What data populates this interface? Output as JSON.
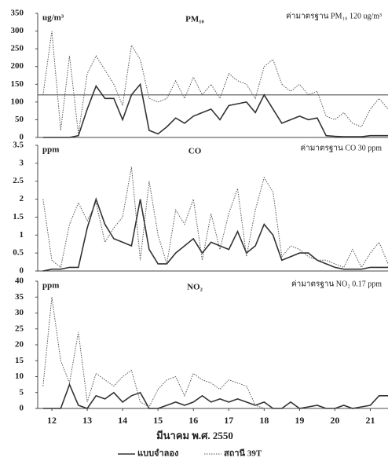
{
  "chart_data": [
    {
      "type": "line",
      "title": "PM₁₀",
      "annotation": "ค่ามาตรฐาน PM₁₀ 120 ug/m³",
      "ylabel": "ug/m³",
      "ylim": [
        0,
        350
      ],
      "yticks": [
        0,
        50,
        100,
        150,
        200,
        250,
        300,
        350
      ],
      "xlim": [
        11.6,
        21.5
      ],
      "ref_line": 120,
      "x": [
        11.75,
        12,
        12.25,
        12.5,
        12.75,
        13,
        13.25,
        13.5,
        13.75,
        14,
        14.25,
        14.5,
        14.75,
        15,
        15.25,
        15.5,
        15.75,
        16,
        16.25,
        16.5,
        16.75,
        17,
        17.25,
        17.5,
        17.75,
        18,
        18.25,
        18.5,
        18.75,
        19,
        19.25,
        19.5,
        19.75,
        20,
        20.25,
        20.5,
        20.75,
        21,
        21.25,
        21.5
      ],
      "series": [
        {
          "name": "แบบจำลอง",
          "color": "#333333",
          "line_style": "solid",
          "values": [
            0,
            0,
            0,
            0,
            5,
            80,
            145,
            110,
            110,
            50,
            120,
            150,
            20,
            10,
            30,
            55,
            40,
            60,
            70,
            80,
            50,
            90,
            95,
            100,
            70,
            120,
            80,
            40,
            50,
            60,
            50,
            55,
            5,
            3,
            2,
            2,
            2,
            5,
            5,
            5
          ]
        },
        {
          "name": "สถานี 39T",
          "color": "#555555",
          "line_style": "dotted",
          "values": [
            120,
            300,
            20,
            230,
            10,
            180,
            230,
            190,
            150,
            90,
            260,
            220,
            110,
            100,
            110,
            160,
            110,
            170,
            120,
            150,
            110,
            180,
            160,
            150,
            110,
            200,
            220,
            150,
            130,
            150,
            120,
            130,
            60,
            50,
            70,
            40,
            30,
            80,
            110,
            80
          ]
        }
      ]
    },
    {
      "type": "line",
      "title": "CO",
      "annotation": "ค่ามาตรฐาน CO  30 ppm",
      "ylabel": "ppm",
      "ylim": [
        0,
        3.5
      ],
      "yticks": [
        0,
        0.5,
        1,
        1.5,
        2,
        2.5,
        3,
        3.5
      ],
      "xlim": [
        11.6,
        21.5
      ],
      "x": [
        11.75,
        12,
        12.25,
        12.5,
        12.75,
        13,
        13.25,
        13.5,
        13.75,
        14,
        14.25,
        14.5,
        14.75,
        15,
        15.25,
        15.5,
        15.75,
        16,
        16.25,
        16.5,
        16.75,
        17,
        17.25,
        17.5,
        17.75,
        18,
        18.25,
        18.5,
        18.75,
        19,
        19.25,
        19.5,
        19.75,
        20,
        20.25,
        20.5,
        20.75,
        21,
        21.25,
        21.5
      ],
      "series": [
        {
          "color": "#333333",
          "line_style": "solid",
          "values": [
            0,
            0.05,
            0.05,
            0.1,
            0.1,
            1.2,
            2,
            1.3,
            0.9,
            0.8,
            0.7,
            2,
            0.6,
            0.2,
            0.2,
            0.5,
            0.7,
            0.9,
            0.5,
            0.8,
            0.7,
            0.6,
            1.1,
            0.5,
            0.7,
            1.3,
            1,
            0.3,
            0.4,
            0.5,
            0.5,
            0.3,
            0.2,
            0.1,
            0.05,
            0.05,
            0.05,
            0.1,
            0.1,
            0.1
          ]
        },
        {
          "color": "#555555",
          "line_style": "dotted",
          "values": [
            2,
            0.3,
            0.1,
            1.3,
            1.9,
            1.4,
            1.9,
            0.8,
            1.2,
            1.5,
            2.9,
            0.3,
            2.5,
            1,
            0.2,
            1.7,
            1.3,
            2,
            0.3,
            1.6,
            0.6,
            1.6,
            2.3,
            0.4,
            1.7,
            2.6,
            2.2,
            0.4,
            0.7,
            0.6,
            0.4,
            0.3,
            0.3,
            0.2,
            0.1,
            0.6,
            0.1,
            0.5,
            0.8,
            0.2
          ]
        }
      ]
    },
    {
      "type": "line",
      "title": "NO₂",
      "annotation": "ค่ามาตรฐาน NO₂ 0.17 ppm",
      "ylabel": "ppm",
      "xlabel": "มีนาคม พ.ศ. 2550",
      "ylim": [
        0,
        40
      ],
      "yticks": [
        0,
        5,
        10,
        15,
        20,
        25,
        30,
        35,
        40
      ],
      "xlim": [
        11.6,
        21.5
      ],
      "xticks": [
        12,
        13,
        14,
        15,
        16,
        17,
        18,
        19,
        20,
        21
      ],
      "x": [
        11.75,
        12,
        12.25,
        12.5,
        12.75,
        13,
        13.25,
        13.5,
        13.75,
        14,
        14.25,
        14.5,
        14.75,
        15,
        15.25,
        15.5,
        15.75,
        16,
        16.25,
        16.5,
        16.75,
        17,
        17.25,
        17.5,
        17.75,
        18,
        18.25,
        18.5,
        18.75,
        19,
        19.25,
        19.5,
        19.75,
        20,
        20.25,
        20.5,
        20.75,
        21,
        21.25,
        21.5
      ],
      "series": [
        {
          "color": "#333333",
          "line_style": "solid",
          "values": [
            0,
            0,
            0,
            7.5,
            1,
            0,
            4,
            3,
            5,
            2,
            4,
            5,
            0,
            0,
            1,
            2,
            1,
            2,
            4,
            2,
            3,
            2,
            3,
            2,
            1,
            2,
            0,
            0,
            2,
            0,
            0.5,
            1,
            0,
            0,
            1,
            0,
            0.5,
            1,
            4,
            4
          ]
        },
        {
          "color": "#555555",
          "line_style": "dotted",
          "values": [
            7,
            35,
            15,
            8,
            24,
            2,
            11,
            9,
            7,
            10,
            12,
            2,
            0.5,
            6,
            9,
            10,
            4,
            11,
            9,
            8,
            6,
            9,
            8,
            7,
            1,
            0,
            0,
            0,
            0,
            0,
            0,
            0,
            0,
            0,
            0,
            0,
            0,
            0,
            0,
            0
          ]
        }
      ]
    }
  ]
}
